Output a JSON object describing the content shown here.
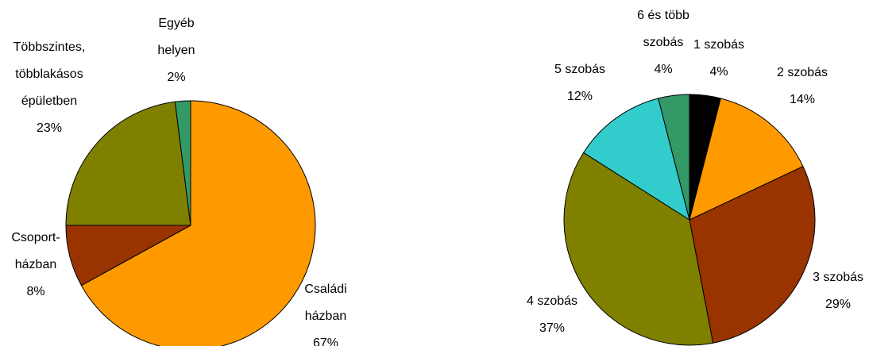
{
  "chart_data": [
    {
      "type": "pie",
      "categories": [
        [
          "Családi",
          "házban"
        ],
        [
          "Csoport-",
          "házban"
        ],
        [
          "Többszintes,",
          "többlakásos",
          "épületben"
        ],
        [
          "Egyéb",
          "helyen"
        ]
      ],
      "values": [
        67,
        8,
        23,
        2
      ],
      "value_labels": [
        "67%",
        "8%",
        "23%",
        "2%"
      ],
      "colors": [
        "#FF9900",
        "#993300",
        "#808000",
        "#339966"
      ]
    },
    {
      "type": "pie",
      "categories": [
        [
          "1 szobás"
        ],
        [
          "2 szobás"
        ],
        [
          "3 szobás"
        ],
        [
          "4 szobás"
        ],
        [
          "5 szobás"
        ],
        [
          "6 és több",
          "szobás"
        ]
      ],
      "values": [
        4,
        14,
        29,
        37,
        12,
        4
      ],
      "value_labels": [
        "4%",
        "14%",
        "29%",
        "37%",
        "12%",
        "4%"
      ],
      "colors": [
        "#000000",
        "#FF9900",
        "#993300",
        "#808000",
        "#33CCCC",
        "#339966"
      ]
    }
  ]
}
